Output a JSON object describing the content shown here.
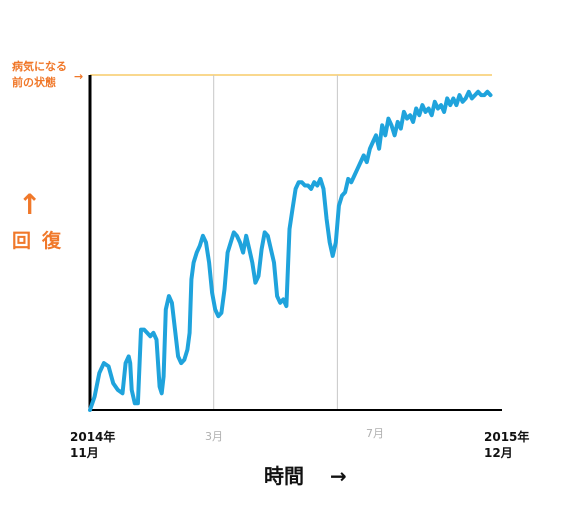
{
  "colors": {
    "series": "#1fa3dc",
    "axis": "#000000",
    "gridline": "#c8c8c8",
    "reference_line": "#f5c14a",
    "accent": "#f0782a"
  },
  "y_axis": {
    "arrow_glyph": "↑",
    "label_char_1": "回",
    "label_char_2": "復"
  },
  "x_axis": {
    "label": "時間",
    "arrow_glyph": "→"
  },
  "reference": {
    "label_line1": "病気になる",
    "label_line2": "前の状態",
    "arrow_glyph": "→"
  },
  "ticks": [
    {
      "line1": "2014年",
      "line2": "11月",
      "style": "bold"
    },
    {
      "line1": "3月",
      "line2": "",
      "style": "gray"
    },
    {
      "line1": "7月",
      "line2": "",
      "style": "gray"
    },
    {
      "line1": "2015年",
      "line2": "12月",
      "style": "bold"
    }
  ],
  "chart_data": {
    "type": "line",
    "title": "",
    "xlabel": "時間",
    "ylabel": "回 復",
    "x_unit": "months since 2014年11月",
    "xlim": [
      0,
      13
    ],
    "ylim": [
      0,
      100
    ],
    "gridlines_x": [
      4,
      8
    ],
    "reference_y": 100,
    "reference_label": "病気になる前の状態",
    "series": [
      {
        "name": "",
        "x": [
          0,
          0.15,
          0.3,
          0.45,
          0.6,
          0.75,
          0.9,
          1.05,
          1.15,
          1.25,
          1.3,
          1.35,
          1.45,
          1.55,
          1.65,
          1.75,
          1.85,
          1.95,
          2.05,
          2.15,
          2.25,
          2.32,
          2.38,
          2.45,
          2.55,
          2.65,
          2.75,
          2.85,
          2.95,
          3.05,
          3.15,
          3.22,
          3.28,
          3.35,
          3.45,
          3.55,
          3.65,
          3.75,
          3.85,
          3.95,
          4.05,
          4.15,
          4.25,
          4.35,
          4.45,
          4.55,
          4.65,
          4.75,
          4.85,
          4.95,
          5.05,
          5.15,
          5.25,
          5.35,
          5.45,
          5.55,
          5.65,
          5.75,
          5.85,
          5.95,
          6.05,
          6.15,
          6.25,
          6.35,
          6.45,
          6.55,
          6.65,
          6.75,
          6.85,
          6.95,
          7.05,
          7.15,
          7.25,
          7.35,
          7.45,
          7.55,
          7.65,
          7.75,
          7.85,
          7.95,
          8.05,
          8.15,
          8.25,
          8.35,
          8.45,
          8.55,
          8.65,
          8.75,
          8.85,
          8.95,
          9.05,
          9.15,
          9.25,
          9.35,
          9.45,
          9.55,
          9.65,
          9.75,
          9.85,
          9.95,
          10.05,
          10.15,
          10.25,
          10.35,
          10.45,
          10.55,
          10.65,
          10.75,
          10.85,
          10.95,
          11.05,
          11.15,
          11.25,
          11.35,
          11.45,
          11.55,
          11.65,
          11.75,
          11.85,
          11.95,
          12.05,
          12.15,
          12.25,
          12.35,
          12.45,
          12.55,
          12.65,
          12.75,
          12.85,
          12.95
        ],
        "y": [
          0,
          4,
          11,
          14,
          13,
          8,
          6,
          5,
          14,
          16,
          14,
          6,
          2,
          2,
          24,
          24,
          23,
          22,
          23,
          21,
          7,
          5,
          10,
          30,
          34,
          32,
          24,
          16,
          14,
          15,
          18,
          23,
          39,
          44,
          47,
          49,
          52,
          50,
          44,
          35,
          30,
          28,
          29,
          36,
          47,
          50,
          53,
          52,
          50,
          47,
          52,
          48,
          44,
          38,
          40,
          48,
          53,
          52,
          48,
          44,
          34,
          32,
          33,
          31,
          54,
          60,
          66,
          68,
          68,
          67,
          67,
          66,
          68,
          67,
          69,
          66,
          57,
          50,
          46,
          50,
          61,
          64,
          65,
          69,
          68,
          70,
          72,
          74,
          76,
          74,
          78,
          80,
          82,
          78,
          85,
          82,
          87,
          85,
          82,
          86,
          84,
          89,
          87,
          88,
          86,
          90,
          88,
          91,
          89,
          90,
          88,
          92,
          90,
          91,
          89,
          93,
          91,
          93,
          91,
          94,
          92,
          93,
          95,
          93,
          94,
          95,
          94,
          94,
          95,
          94
        ]
      }
    ]
  }
}
